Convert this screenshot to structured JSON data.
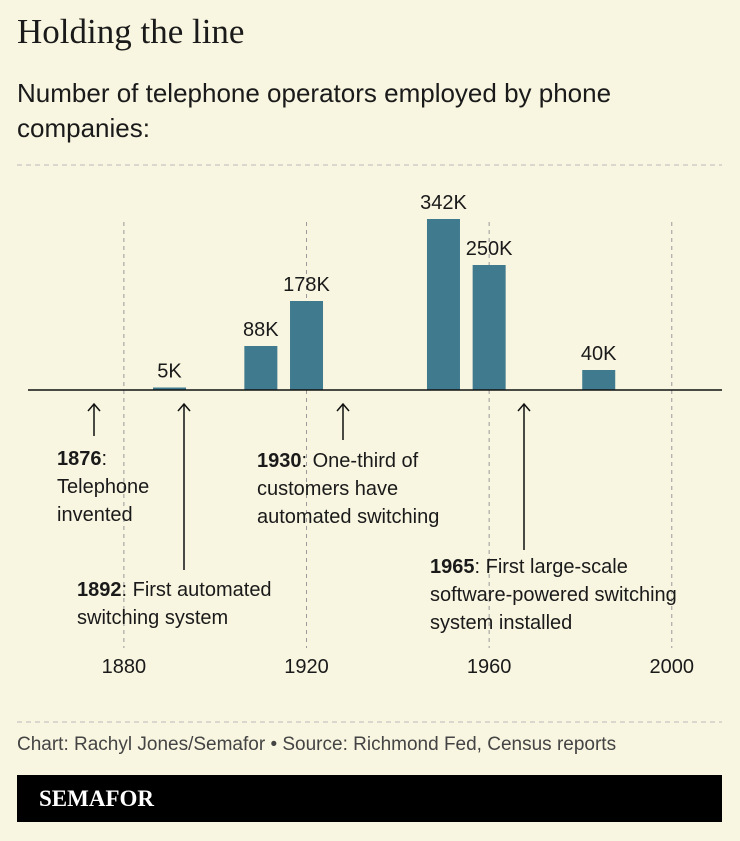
{
  "chart_data": {
    "type": "bar",
    "title": "Holding the line",
    "subtitle": "Number of telephone operators employed by phone companies:",
    "x": [
      1890,
      1910,
      1920,
      1950,
      1960,
      1984
    ],
    "values": [
      5000,
      88000,
      178000,
      342000,
      250000,
      40000
    ],
    "value_labels": [
      "5K",
      "88K",
      "178K",
      "342K",
      "250K",
      "40K"
    ],
    "color": "#3f7a8f",
    "xlim": [
      1859,
      2011
    ],
    "xticks": [
      1880,
      1920,
      1960,
      2000
    ],
    "ylim": [
      0,
      350000
    ],
    "grid": true,
    "annotations": [
      {
        "year": "1876",
        "text": ": Telephone invented"
      },
      {
        "year": "1892",
        "text": ": First automated switching system"
      },
      {
        "year": "1930",
        "text": ": One-third of customers have automated switching"
      },
      {
        "year": "1965",
        "text": ": First large-scale software-powered switching system installed"
      }
    ]
  },
  "footer": {
    "credit": "Chart: Rachyl Jones/Semafor • Source: Richmond Fed, Census reports",
    "brand": "SEMAFOR"
  }
}
